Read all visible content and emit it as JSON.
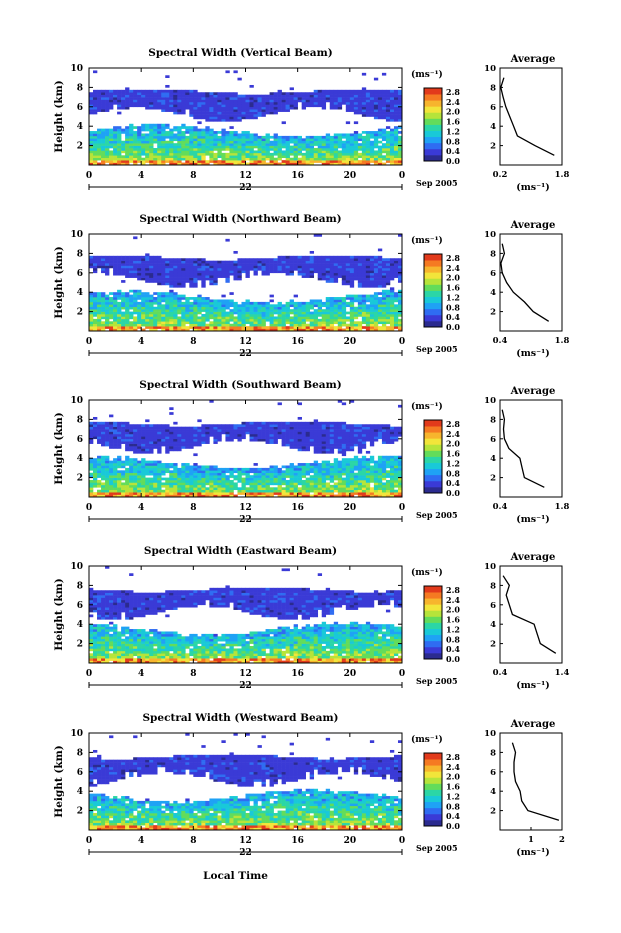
{
  "figure": {
    "xlabel": "Local Time",
    "date_label": "Sep 2005",
    "day_label": "22",
    "colorbar_unit": "(ms⁻¹)",
    "avg_title": "Average",
    "avg_xlabel": "(ms⁻¹)"
  },
  "colors": {
    "colormap": [
      "#2b2b8f",
      "#3a3ad6",
      "#2f6cf2",
      "#1fa2f5",
      "#19c9d8",
      "#2bd6a6",
      "#63dc5a",
      "#b6e43a",
      "#f2e53a",
      "#f7b52d",
      "#f57a22",
      "#e23a1b"
    ],
    "echo_body": "#3f4ef0",
    "background": "#ffffff"
  },
  "chart_data": [
    {
      "type": "heatmap",
      "title": "Spectral Width (Vertical Beam)",
      "ylabel": "Height (km)",
      "xlim": [
        0,
        24
      ],
      "ylim": [
        0,
        10
      ],
      "x_ticks": [
        "0",
        "4",
        "8",
        "12",
        "16",
        "20",
        "0"
      ],
      "y_ticks": [
        "2",
        "4",
        "6",
        "8",
        "10"
      ],
      "colorbar_ticks": [
        "0.0",
        "0.4",
        "0.8",
        "1.2",
        "1.6",
        "2.0",
        "2.4",
        "2.8"
      ],
      "avg_profile": {
        "xlim": [
          0.2,
          1.8
        ],
        "x_ticks": [
          "0.2",
          "1.8"
        ],
        "height_km": [
          1,
          2,
          3,
          4,
          5,
          6,
          7,
          8,
          9
        ],
        "width_ms": [
          1.6,
          1.1,
          0.65,
          0.55,
          0.45,
          0.35,
          0.28,
          0.22,
          0.3
        ]
      }
    },
    {
      "type": "heatmap",
      "title": "Spectral Width (Northward Beam)",
      "ylabel": "Height (km)",
      "xlim": [
        0,
        24
      ],
      "ylim": [
        0,
        10
      ],
      "x_ticks": [
        "0",
        "4",
        "8",
        "12",
        "16",
        "20",
        "0"
      ],
      "y_ticks": [
        "2",
        "4",
        "6",
        "8",
        "10"
      ],
      "colorbar_ticks": [
        "0.0",
        "0.4",
        "0.8",
        "1.2",
        "1.6",
        "2.0",
        "2.4",
        "2.8"
      ],
      "avg_profile": {
        "xlim": [
          0.4,
          1.8
        ],
        "x_ticks": [
          "0.4",
          "1.8"
        ],
        "height_km": [
          1,
          2,
          3,
          4,
          5,
          6,
          7,
          8,
          9
        ],
        "width_ms": [
          1.5,
          1.15,
          0.95,
          0.7,
          0.55,
          0.45,
          0.42,
          0.5,
          0.45
        ]
      }
    },
    {
      "type": "heatmap",
      "title": "Spectral Width (Southward Beam)",
      "ylabel": "Height (km)",
      "xlim": [
        0,
        24
      ],
      "ylim": [
        0,
        10
      ],
      "x_ticks": [
        "0",
        "4",
        "8",
        "12",
        "16",
        "20",
        "0"
      ],
      "y_ticks": [
        "2",
        "4",
        "6",
        "8",
        "10"
      ],
      "colorbar_ticks": [
        "0.0",
        "0.4",
        "0.8",
        "1.2",
        "1.6",
        "2.0",
        "2.4",
        "2.8"
      ],
      "avg_profile": {
        "xlim": [
          0.4,
          1.8
        ],
        "x_ticks": [
          "0.4",
          "1.8"
        ],
        "height_km": [
          1,
          2,
          3,
          4,
          5,
          6,
          7,
          8,
          9
        ],
        "width_ms": [
          1.4,
          0.95,
          0.9,
          0.85,
          0.6,
          0.5,
          0.48,
          0.5,
          0.45
        ]
      }
    },
    {
      "type": "heatmap",
      "title": "Spectral Width (Eastward Beam)",
      "ylabel": "Height (km)",
      "xlim": [
        0,
        24
      ],
      "ylim": [
        0,
        10
      ],
      "x_ticks": [
        "0",
        "4",
        "8",
        "12",
        "16",
        "20",
        "0"
      ],
      "y_ticks": [
        "2",
        "4",
        "6",
        "8",
        "10"
      ],
      "colorbar_ticks": [
        "0.0",
        "0.4",
        "0.8",
        "1.2",
        "1.6",
        "2.0",
        "2.4",
        "2.8"
      ],
      "avg_profile": {
        "xlim": [
          0.4,
          1.4
        ],
        "x_ticks": [
          "0.4",
          "1.4"
        ],
        "height_km": [
          1,
          2,
          3,
          4,
          5,
          6,
          7,
          8,
          9
        ],
        "width_ms": [
          1.3,
          1.05,
          1.0,
          0.95,
          0.6,
          0.55,
          0.5,
          0.55,
          0.45
        ]
      }
    },
    {
      "type": "heatmap",
      "title": "Spectral Width (Westward Beam)",
      "ylabel": "Height (km)",
      "xlim": [
        0,
        24
      ],
      "ylim": [
        0,
        10
      ],
      "x_ticks": [
        "0",
        "4",
        "8",
        "12",
        "16",
        "20",
        "0"
      ],
      "y_ticks": [
        "2",
        "4",
        "6",
        "8",
        "10"
      ],
      "colorbar_ticks": [
        "0.0",
        "0.4",
        "0.8",
        "1.2",
        "1.6",
        "2.0",
        "2.4",
        "2.8"
      ],
      "avg_profile": {
        "xlim": [
          0,
          2
        ],
        "x_ticks": [
          "1",
          "2"
        ],
        "height_km": [
          1,
          2,
          3,
          4,
          5,
          6,
          7,
          8,
          9
        ],
        "width_ms": [
          1.9,
          0.9,
          0.7,
          0.65,
          0.5,
          0.45,
          0.45,
          0.5,
          0.4
        ]
      }
    }
  ]
}
